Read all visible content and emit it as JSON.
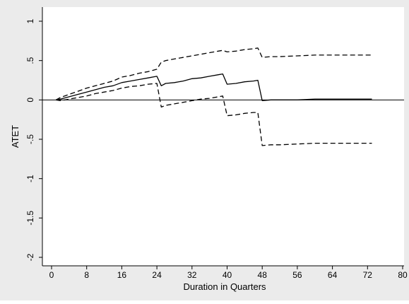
{
  "chart_data": {
    "type": "line",
    "title": "",
    "xlabel": "Duration in Quarters",
    "ylabel": "ATET",
    "xlim": [
      0,
      80
    ],
    "ylim": [
      -2,
      1
    ],
    "xticks": [
      {
        "value": 0,
        "label": "0"
      },
      {
        "value": 8,
        "label": "8"
      },
      {
        "value": 16,
        "label": "16"
      },
      {
        "value": 24,
        "label": "24"
      },
      {
        "value": 32,
        "label": "32"
      },
      {
        "value": 40,
        "label": "40"
      },
      {
        "value": 48,
        "label": "48"
      },
      {
        "value": 56,
        "label": "56"
      },
      {
        "value": 64,
        "label": "64"
      },
      {
        "value": 72,
        "label": "72"
      },
      {
        "value": 80,
        "label": "80"
      }
    ],
    "yticks": [
      {
        "value": 1,
        "label": "1"
      },
      {
        "value": 0.5,
        "label": ".5"
      },
      {
        "value": 0,
        "label": "0"
      },
      {
        "value": -0.5,
        "label": "-.5"
      },
      {
        "value": -1,
        "label": "-1"
      },
      {
        "value": -1.5,
        "label": "-1.5"
      },
      {
        "value": -2,
        "label": "-2"
      }
    ],
    "reference_line_y": 0,
    "grid": false,
    "legend": "none",
    "colors": {
      "background": "#ebebeb",
      "plot_area": "#ffffff",
      "line": "#000000"
    },
    "series": [
      {
        "style": "solid",
        "x": [
          1,
          2,
          4,
          6,
          8,
          10,
          12,
          14,
          16,
          18,
          20,
          22,
          24,
          25,
          26,
          28,
          30,
          32,
          34,
          36,
          38,
          39,
          40,
          42,
          44,
          46,
          47,
          48,
          50,
          52,
          56,
          60,
          64,
          68,
          72,
          73
        ],
        "y": [
          0,
          0.01,
          0.04,
          0.07,
          0.1,
          0.13,
          0.16,
          0.18,
          0.22,
          0.24,
          0.26,
          0.28,
          0.3,
          0.18,
          0.21,
          0.22,
          0.24,
          0.27,
          0.28,
          0.3,
          0.32,
          0.33,
          0.2,
          0.21,
          0.23,
          0.24,
          0.25,
          -0.01,
          0.0,
          0.0,
          0.0,
          0.01,
          0.01,
          0.01,
          0.01,
          0.01
        ]
      },
      {
        "style": "dashed",
        "x": [
          1,
          2,
          4,
          6,
          8,
          10,
          12,
          14,
          16,
          18,
          20,
          22,
          24,
          25,
          26,
          28,
          30,
          32,
          34,
          36,
          38,
          39,
          40,
          42,
          44,
          46,
          47,
          48,
          50,
          52,
          56,
          60,
          64,
          68,
          72,
          73
        ],
        "y": [
          0,
          0.03,
          0.07,
          0.11,
          0.15,
          0.18,
          0.21,
          0.24,
          0.29,
          0.31,
          0.34,
          0.36,
          0.39,
          0.48,
          0.5,
          0.52,
          0.54,
          0.56,
          0.58,
          0.6,
          0.62,
          0.63,
          0.61,
          0.62,
          0.64,
          0.65,
          0.66,
          0.54,
          0.55,
          0.55,
          0.56,
          0.57,
          0.57,
          0.57,
          0.57,
          0.57
        ]
      },
      {
        "style": "dashed",
        "x": [
          1,
          2,
          4,
          6,
          8,
          10,
          12,
          14,
          16,
          18,
          20,
          22,
          24,
          25,
          26,
          28,
          30,
          32,
          34,
          36,
          38,
          39,
          40,
          42,
          44,
          46,
          47,
          48,
          50,
          52,
          56,
          60,
          64,
          68,
          72,
          73
        ],
        "y": [
          0,
          -0.01,
          0.01,
          0.03,
          0.05,
          0.08,
          0.1,
          0.12,
          0.15,
          0.17,
          0.18,
          0.2,
          0.21,
          -0.09,
          -0.07,
          -0.05,
          -0.03,
          -0.01,
          0.01,
          0.02,
          0.04,
          0.05,
          -0.2,
          -0.19,
          -0.17,
          -0.16,
          -0.16,
          -0.58,
          -0.57,
          -0.57,
          -0.56,
          -0.55,
          -0.55,
          -0.55,
          -0.55,
          -0.55
        ]
      }
    ]
  }
}
